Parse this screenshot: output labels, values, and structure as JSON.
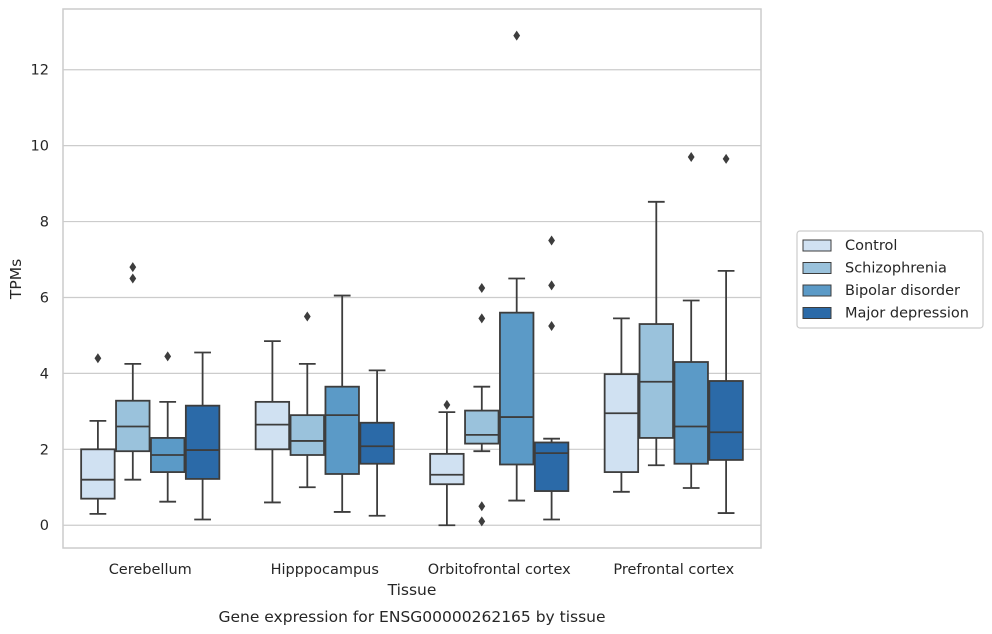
{
  "chart_data": {
    "type": "box",
    "title": "",
    "caption": "Gene expression for ENSG00000262165 by tissue",
    "xlabel": "Tissue",
    "ylabel": "TPMs",
    "ylim": [
      -0.6,
      13.6
    ],
    "yticks": [
      0,
      2,
      4,
      6,
      8,
      10,
      12
    ],
    "grid": true,
    "legend_position": "right-outside",
    "categories": [
      "Cerebellum",
      "Hipppocampus",
      "Orbitofrontal cortex",
      "Prefrontal cortex"
    ],
    "series": [
      {
        "name": "Control",
        "color": "#d0e1f2",
        "boxes": [
          {
            "min": 0.3,
            "q1": 0.7,
            "median": 1.2,
            "q3": 2.0,
            "max": 2.75,
            "outliers": [
              4.4
            ]
          },
          {
            "min": 0.6,
            "q1": 2.0,
            "median": 2.65,
            "q3": 3.25,
            "max": 4.85,
            "outliers": []
          },
          {
            "min": 0.0,
            "q1": 1.08,
            "median": 1.33,
            "q3": 1.88,
            "max": 2.98,
            "outliers": [
              3.17
            ]
          },
          {
            "min": 0.88,
            "q1": 1.4,
            "median": 2.95,
            "q3": 3.98,
            "max": 5.45,
            "outliers": []
          }
        ]
      },
      {
        "name": "Schizophrenia",
        "color": "#9ac2dc",
        "boxes": [
          {
            "min": 1.2,
            "q1": 1.95,
            "median": 2.6,
            "q3": 3.28,
            "max": 4.25,
            "outliers": [
              6.5,
              6.8
            ]
          },
          {
            "min": 1.0,
            "q1": 1.85,
            "median": 2.22,
            "q3": 2.9,
            "max": 4.25,
            "outliers": [
              5.5
            ]
          },
          {
            "min": 1.95,
            "q1": 2.15,
            "median": 2.38,
            "q3": 3.02,
            "max": 3.65,
            "outliers": [
              0.1,
              0.5,
              5.45,
              6.25
            ]
          },
          {
            "min": 1.58,
            "q1": 2.3,
            "median": 3.78,
            "q3": 5.3,
            "max": 8.52,
            "outliers": []
          }
        ]
      },
      {
        "name": "Bipolar disorder",
        "color": "#5b9ac7",
        "boxes": [
          {
            "min": 0.62,
            "q1": 1.4,
            "median": 1.85,
            "q3": 2.3,
            "max": 3.25,
            "outliers": [
              4.45
            ]
          },
          {
            "min": 0.35,
            "q1": 1.35,
            "median": 2.9,
            "q3": 3.65,
            "max": 6.05,
            "outliers": []
          },
          {
            "min": 0.65,
            "q1": 1.6,
            "median": 2.85,
            "q3": 5.6,
            "max": 6.5,
            "outliers": [
              12.9
            ]
          },
          {
            "min": 0.98,
            "q1": 1.62,
            "median": 2.6,
            "q3": 4.3,
            "max": 5.92,
            "outliers": [
              9.7
            ]
          }
        ]
      },
      {
        "name": "Major depression",
        "color": "#2b6aa8",
        "boxes": [
          {
            "min": 0.15,
            "q1": 1.22,
            "median": 1.98,
            "q3": 3.15,
            "max": 4.55,
            "outliers": []
          },
          {
            "min": 0.25,
            "q1": 1.62,
            "median": 2.08,
            "q3": 2.7,
            "max": 4.08,
            "outliers": []
          },
          {
            "min": 0.15,
            "q1": 0.9,
            "median": 1.9,
            "q3": 2.18,
            "max": 2.28,
            "outliers": [
              5.25,
              6.32,
              7.5
            ]
          },
          {
            "min": 0.32,
            "q1": 1.72,
            "median": 2.45,
            "q3": 3.8,
            "max": 6.7,
            "outliers": [
              9.65
            ]
          }
        ]
      }
    ]
  }
}
